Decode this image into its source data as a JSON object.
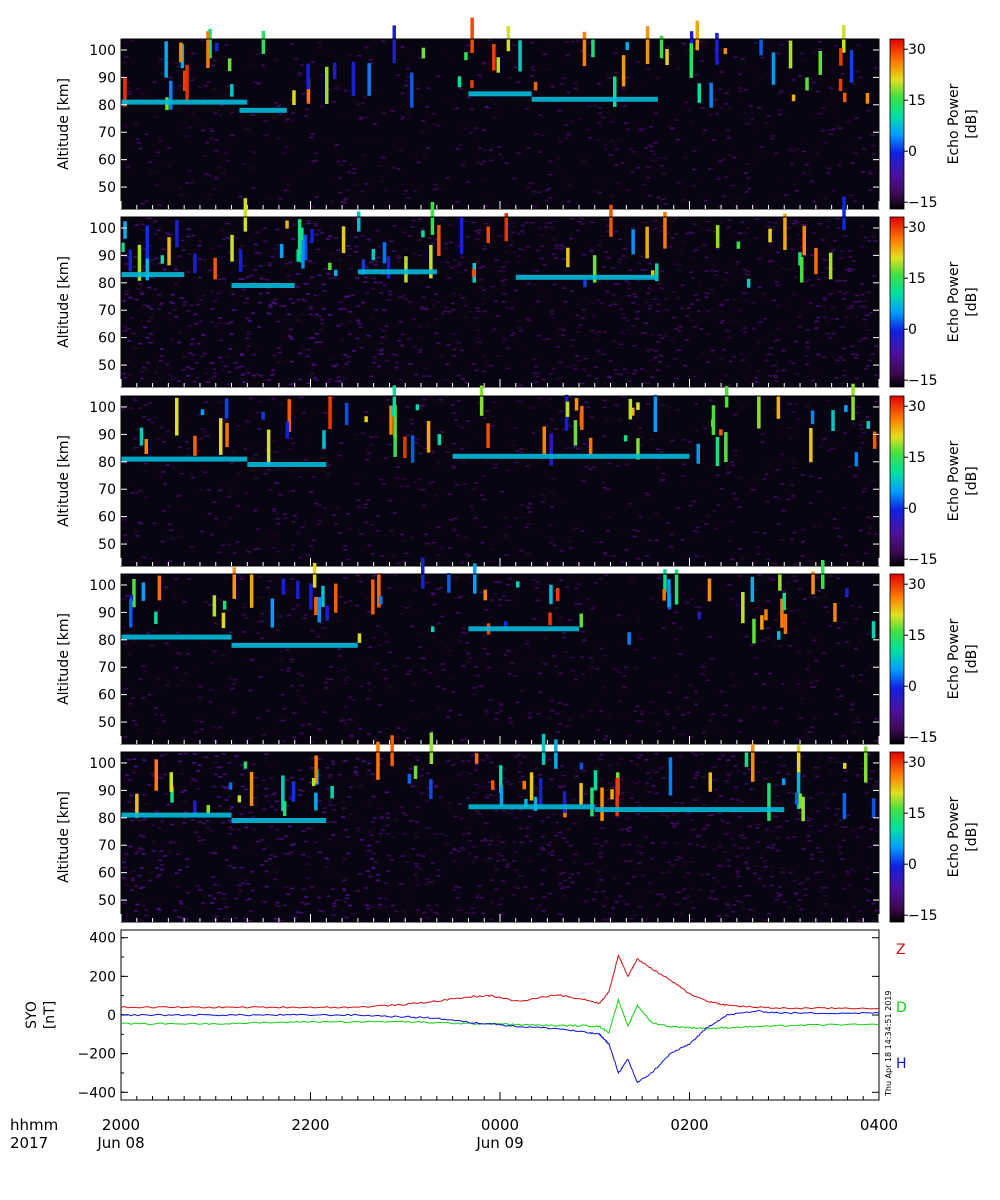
{
  "chart_data": [
    {
      "type": "heatmap",
      "panel": 1,
      "ylabel": "Altitude [km]",
      "y_ticks": [
        50,
        60,
        70,
        80,
        90,
        100
      ],
      "ylim": [
        42,
        104
      ],
      "colorbar": {
        "label": "Echo Power [dB]",
        "ticks": [
          -15,
          0,
          15,
          30
        ],
        "range": [
          -17,
          33
        ]
      },
      "echo_layers": [
        {
          "time_start": "2000",
          "time_end": "2120",
          "altitude_km": 81
        },
        {
          "time_start": "2115",
          "time_end": "2145",
          "altitude_km": 78
        },
        {
          "time_start": "2340",
          "time_end": "0020",
          "altitude_km": 84
        },
        {
          "time_start": "0020",
          "time_end": "0140",
          "altitude_km": 82
        }
      ]
    },
    {
      "type": "heatmap",
      "panel": 2,
      "ylabel": "Altitude [km]",
      "y_ticks": [
        50,
        60,
        70,
        80,
        90,
        100
      ],
      "ylim": [
        42,
        104
      ],
      "colorbar": {
        "label": "Echo Power [dB]",
        "ticks": [
          -15,
          0,
          15,
          30
        ],
        "range": [
          -17,
          33
        ]
      },
      "echo_layers": [
        {
          "time_start": "2000",
          "time_end": "2040",
          "altitude_km": 83
        },
        {
          "time_start": "2110",
          "time_end": "2150",
          "altitude_km": 79
        },
        {
          "time_start": "2230",
          "time_end": "2320",
          "altitude_km": 84
        },
        {
          "time_start": "0010",
          "time_end": "0140",
          "altitude_km": 82
        }
      ]
    },
    {
      "type": "heatmap",
      "panel": 3,
      "ylabel": "Altitude [km]",
      "y_ticks": [
        50,
        60,
        70,
        80,
        90,
        100
      ],
      "ylim": [
        42,
        104
      ],
      "colorbar": {
        "label": "Echo Power [dB]",
        "ticks": [
          -15,
          0,
          15,
          30
        ],
        "range": [
          -17,
          33
        ]
      },
      "echo_layers": [
        {
          "time_start": "2000",
          "time_end": "2120",
          "altitude_km": 81
        },
        {
          "time_start": "2120",
          "time_end": "2210",
          "altitude_km": 79
        },
        {
          "time_start": "2330",
          "time_end": "0200",
          "altitude_km": 82
        }
      ]
    },
    {
      "type": "heatmap",
      "panel": 4,
      "ylabel": "Altitude [km]",
      "y_ticks": [
        50,
        60,
        70,
        80,
        90,
        100
      ],
      "ylim": [
        42,
        104
      ],
      "colorbar": {
        "label": "Echo Power [dB]",
        "ticks": [
          -15,
          0,
          15,
          30
        ],
        "range": [
          -17,
          33
        ]
      },
      "echo_layers": [
        {
          "time_start": "2000",
          "time_end": "2110",
          "altitude_km": 81
        },
        {
          "time_start": "2110",
          "time_end": "2230",
          "altitude_km": 78
        },
        {
          "time_start": "2340",
          "time_end": "0050",
          "altitude_km": 84
        }
      ]
    },
    {
      "type": "heatmap",
      "panel": 5,
      "ylabel": "Altitude [km]",
      "y_ticks": [
        50,
        60,
        70,
        80,
        90,
        100
      ],
      "ylim": [
        42,
        104
      ],
      "colorbar": {
        "label": "Echo Power [dB]",
        "ticks": [
          -15,
          0,
          15,
          30
        ],
        "range": [
          -17,
          33
        ]
      },
      "echo_layers": [
        {
          "time_start": "2000",
          "time_end": "2110",
          "altitude_km": 81
        },
        {
          "time_start": "2110",
          "time_end": "2210",
          "altitude_km": 79
        },
        {
          "time_start": "2340",
          "time_end": "0100",
          "altitude_km": 84
        },
        {
          "time_start": "0100",
          "time_end": "0300",
          "altitude_km": 83
        }
      ]
    },
    {
      "type": "line",
      "panel": 6,
      "ylabel": "SYO [nT]",
      "y_ticks": [
        -400,
        -200,
        0,
        200,
        400
      ],
      "ylim": [
        -440,
        440
      ],
      "x_hours": [
        0,
        0.5,
        1,
        1.5,
        2,
        2.5,
        3,
        3.3,
        3.7,
        3.9,
        4.2,
        4.6,
        4.9,
        5.05,
        5.15,
        5.25,
        5.35,
        5.45,
        5.6,
        5.8,
        6.0,
        6.2,
        6.4,
        6.7,
        7,
        7.5,
        8
      ],
      "series": [
        {
          "name": "Z",
          "color": "#d01010",
          "values": [
            40,
            40,
            40,
            40,
            40,
            40,
            55,
            70,
            95,
            100,
            70,
            105,
            80,
            60,
            120,
            310,
            200,
            290,
            240,
            180,
            110,
            70,
            50,
            40,
            35,
            35,
            35
          ]
        },
        {
          "name": "D",
          "color": "#10d010",
          "values": [
            -45,
            -45,
            -45,
            -40,
            -35,
            -35,
            -35,
            -40,
            -45,
            -45,
            -50,
            -55,
            -55,
            -60,
            -90,
            80,
            -60,
            50,
            -40,
            -60,
            -65,
            -70,
            -65,
            -60,
            -55,
            -50,
            -50
          ]
        },
        {
          "name": "H",
          "color": "#1010d0",
          "values": [
            0,
            0,
            0,
            0,
            0,
            0,
            -10,
            -15,
            -40,
            -45,
            -60,
            -70,
            -90,
            -100,
            -150,
            -300,
            -230,
            -350,
            -300,
            -200,
            -150,
            -60,
            0,
            20,
            10,
            10,
            10
          ]
        }
      ],
      "legend": [
        "Z",
        "D",
        "H"
      ]
    }
  ],
  "time_axis": {
    "hhmm_label": "hhmm",
    "year_label": "2017",
    "ticks": [
      "2000",
      "2200",
      "0000",
      "0200",
      "0400"
    ],
    "date_labels": [
      "Jun 08",
      "Jun 09"
    ]
  },
  "timestamp": "Thu Apr 18 14:34:51 2019"
}
